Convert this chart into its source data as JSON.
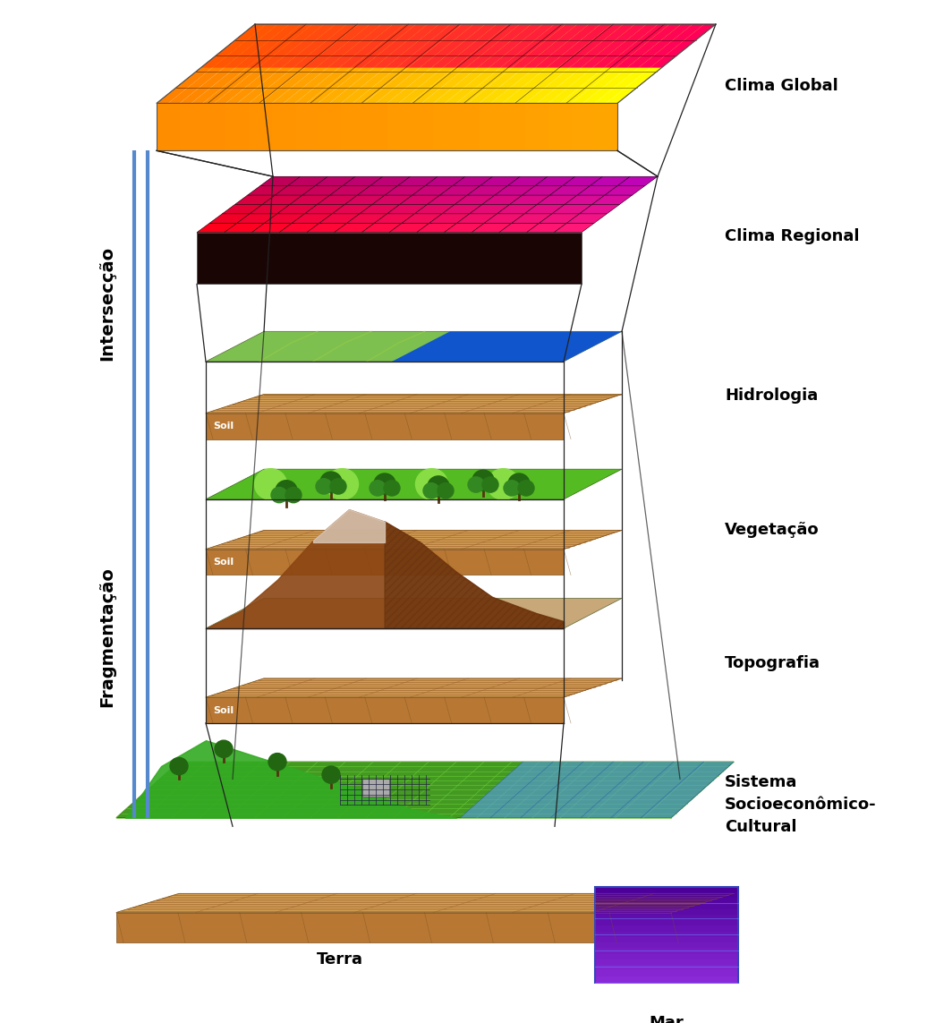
{
  "bg": "#ffffff",
  "labels": {
    "clima_global": "Clima Global",
    "clima_regional": "Clima Regional",
    "hidrologia": "Hidrologia",
    "vegetacao": "Vegetação",
    "topografia": "Topografia",
    "sistema": "Sistema\nSocioeconômico-\nCultural",
    "terra": "Terra",
    "mar": "Mar",
    "interseccao": "Intersecção",
    "fragmentacao": "Fragmentação"
  },
  "lfs": 13,
  "side_lfs": 14,
  "conn_lw": 0.9,
  "conn_color": "#222222"
}
